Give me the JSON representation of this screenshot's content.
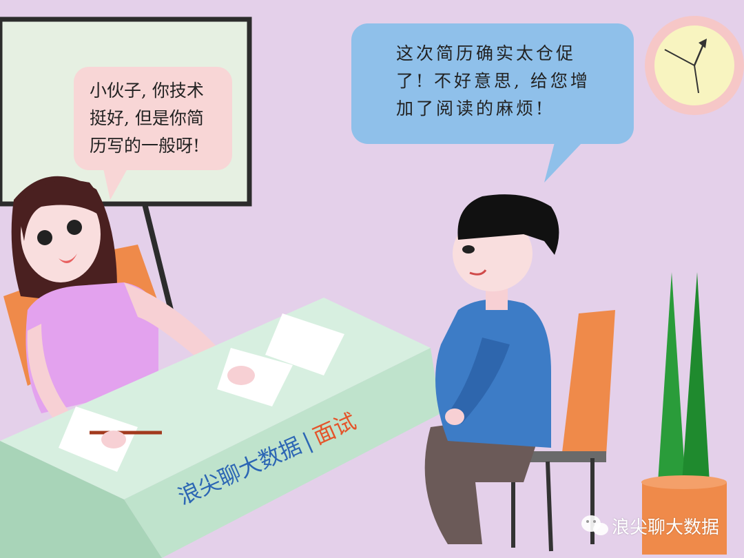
{
  "speech": {
    "interviewer": [
      "小伙子, 你技术",
      "挺好, 但是你简",
      "历写的一般呀!"
    ],
    "candidate": [
      "这次简历确实太仓促",
      "了! 不好意思, 给您增",
      "加了阅读的麻烦!"
    ]
  },
  "desk_label": {
    "brand": "浪尖聊大数据",
    "separator": "|",
    "topic": "面试"
  },
  "watermark": {
    "icon": "wechat-icon",
    "text": "浪尖聊大数据"
  },
  "colors": {
    "background": "#e4d0ea",
    "desk": "#bfe3cc",
    "interviewer_bubble": "#f8d6d6",
    "candidate_bubble": "#8fc0ea",
    "accent": "#e4542a",
    "brand_blue": "#2c66b4"
  }
}
